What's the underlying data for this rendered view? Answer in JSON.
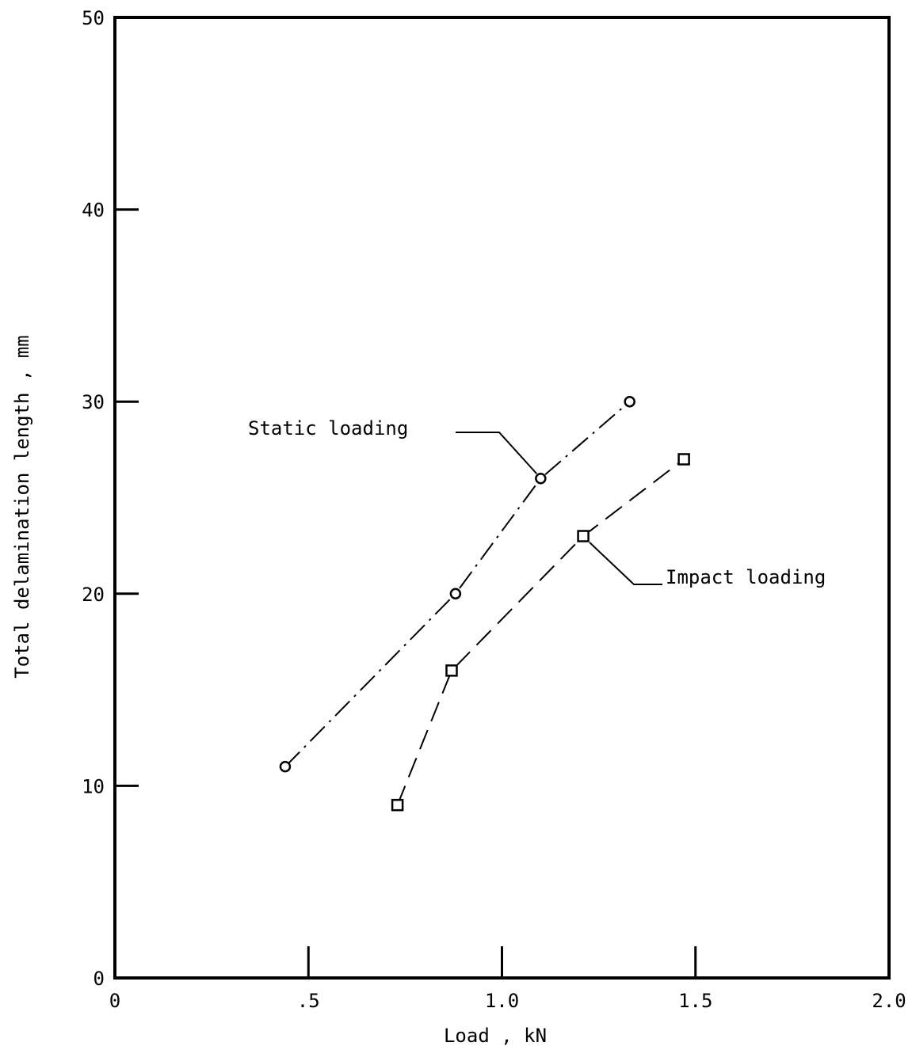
{
  "chart_data": {
    "type": "line",
    "xlabel": "Load , kN",
    "ylabel": "Total delamination length , mm",
    "xlim": [
      0,
      2.0
    ],
    "ylim": [
      0,
      50
    ],
    "x_ticks": [
      {
        "value": 0,
        "label": "0"
      },
      {
        "value": 0.5,
        "label": ".5"
      },
      {
        "value": 1.0,
        "label": "1.0"
      },
      {
        "value": 1.5,
        "label": "1.5"
      },
      {
        "value": 2.0,
        "label": "2.0"
      }
    ],
    "y_ticks": [
      {
        "value": 0,
        "label": "0"
      },
      {
        "value": 10,
        "label": "10"
      },
      {
        "value": 20,
        "label": "20"
      },
      {
        "value": 30,
        "label": "30"
      },
      {
        "value": 40,
        "label": "40"
      },
      {
        "value": 50,
        "label": "50"
      }
    ],
    "grid": false,
    "series": [
      {
        "name": "Static loading",
        "marker": "circle",
        "line_style": "dash-dot",
        "color": "#000000",
        "points": [
          {
            "x": 0.44,
            "y": 11
          },
          {
            "x": 0.88,
            "y": 20
          },
          {
            "x": 1.1,
            "y": 26
          },
          {
            "x": 1.33,
            "y": 30
          }
        ]
      },
      {
        "name": "Impact loading",
        "marker": "square",
        "line_style": "dashed",
        "color": "#000000",
        "points": [
          {
            "x": 0.73,
            "y": 9
          },
          {
            "x": 0.87,
            "y": 16
          },
          {
            "x": 1.21,
            "y": 23
          },
          {
            "x": 1.47,
            "y": 27
          }
        ]
      }
    ]
  }
}
